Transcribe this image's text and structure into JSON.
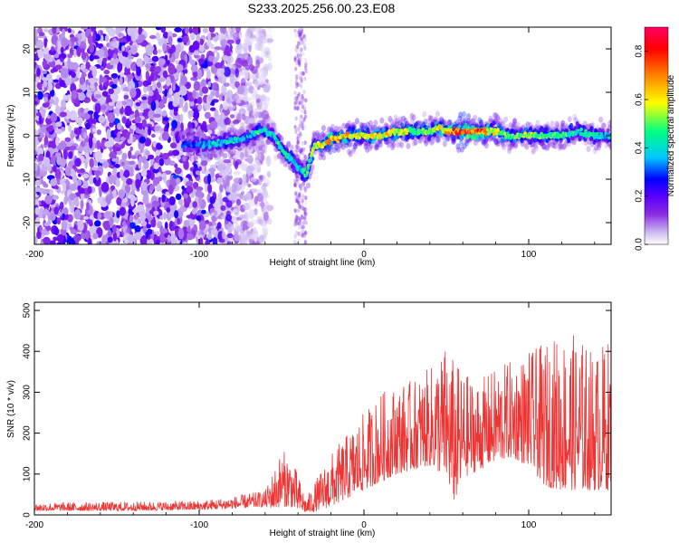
{
  "figure": {
    "title": "S233.2025.256.00.23.E08"
  },
  "chart_data": [
    {
      "type": "heatmap",
      "title": "S233.2025.256.00.23.E08",
      "xlabel": "Height of straight line (km)",
      "ylabel": "Frequency (Hz)",
      "xlim": [
        -200,
        150
      ],
      "ylim": [
        -25,
        25
      ],
      "xticks": [
        -200,
        -100,
        0,
        100
      ],
      "yticks": [
        -20,
        -10,
        0,
        10,
        20
      ],
      "colorbar": {
        "label": "Normalized spectral amplitude",
        "range": [
          0,
          0.9
        ],
        "ticks": [
          "0.0",
          "0.2",
          "0.4",
          "0.6",
          "0.8"
        ],
        "tick_values": [
          0.0,
          0.2,
          0.4,
          0.6,
          0.8
        ],
        "colormap": [
          "#ffffff",
          "#c8b4f0",
          "#8a2be2",
          "#5a00ff",
          "#0000ff",
          "#00c8ff",
          "#00ff80",
          "#ffff00",
          "#ff8000",
          "#ff0000",
          "#ff0064"
        ]
      },
      "ridge": {
        "x": [
          -110,
          -100,
          -90,
          -80,
          -75,
          -70,
          -65,
          -60,
          -55,
          -50,
          -45,
          -40,
          -35,
          -30,
          -25,
          -20,
          -10,
          0,
          10,
          20,
          30,
          40,
          45,
          50,
          60,
          70,
          80,
          90,
          100,
          110,
          120,
          130,
          140,
          150
        ],
        "y": [
          -2,
          -2,
          -2,
          -1,
          -1,
          0,
          1,
          1,
          0,
          -3,
          -5,
          -7,
          -9,
          -2,
          -2,
          -1,
          0,
          0,
          0,
          1,
          1,
          1,
          2,
          1,
          1,
          1,
          1,
          0,
          0,
          0,
          0,
          1,
          0,
          0
        ],
        "peak_amplitude": [
          0.3,
          0.35,
          0.4,
          0.45,
          0.4,
          0.35,
          0.5,
          0.45,
          0.4,
          0.5,
          0.45,
          0.4,
          0.5,
          0.55,
          0.6,
          0.75,
          0.7,
          0.6,
          0.65,
          0.6,
          0.55,
          0.55,
          0.6,
          0.7,
          0.85,
          0.8,
          0.6,
          0.5,
          0.55,
          0.5,
          0.5,
          0.45,
          0.45,
          0.4
        ]
      },
      "noise_region": {
        "x_from": -200,
        "x_to": -57,
        "amplitude": 0.25
      },
      "noise_column": {
        "x_from": -42,
        "x_to": -35,
        "amplitude": 0.12
      }
    },
    {
      "type": "line",
      "xlabel": "Height of straight line (km)",
      "ylabel": "SNR (10 * v/v)",
      "xlim": [
        -200,
        150
      ],
      "ylim": [
        0,
        520
      ],
      "xticks": [
        -200,
        -100,
        0,
        100
      ],
      "yticks": [
        0,
        100,
        200,
        300,
        400,
        500
      ],
      "color": "#ee3333",
      "envelope": {
        "x": [
          -200,
          -150,
          -100,
          -80,
          -60,
          -55,
          -50,
          -45,
          -40,
          -35,
          -30,
          -20,
          -10,
          0,
          10,
          20,
          30,
          40,
          50,
          55,
          60,
          70,
          80,
          90,
          100,
          110,
          120,
          130,
          140,
          150
        ],
        "low": [
          10,
          10,
          12,
          15,
          20,
          15,
          20,
          20,
          10,
          5,
          8,
          20,
          40,
          60,
          80,
          100,
          110,
          120,
          90,
          30,
          90,
          110,
          130,
          140,
          120,
          70,
          60,
          60,
          60,
          60
        ],
        "high": [
          30,
          32,
          35,
          45,
          60,
          110,
          160,
          150,
          100,
          40,
          80,
          150,
          200,
          250,
          300,
          320,
          330,
          360,
          420,
          380,
          350,
          330,
          360,
          380,
          400,
          420,
          450,
          440,
          400,
          440
        ]
      }
    }
  ]
}
